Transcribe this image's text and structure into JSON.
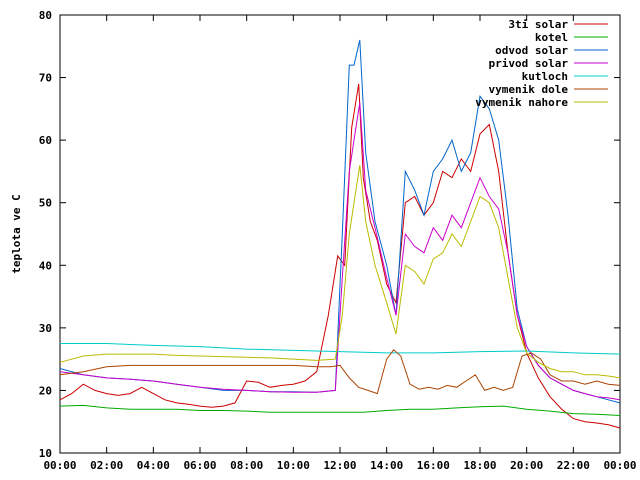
{
  "chart_data": {
    "type": "line",
    "title": "",
    "xlabel": "",
    "ylabel": "teplota ve C",
    "xlim": [
      0,
      24
    ],
    "ylim": [
      10,
      80
    ],
    "grid": false,
    "legend_position": "top-right",
    "x_ticks": [
      {
        "value": 0,
        "label": "00:00"
      },
      {
        "value": 2,
        "label": "02:00"
      },
      {
        "value": 4,
        "label": "04:00"
      },
      {
        "value": 6,
        "label": "06:00"
      },
      {
        "value": 8,
        "label": "08:00"
      },
      {
        "value": 10,
        "label": "10:00"
      },
      {
        "value": 12,
        "label": "12:00"
      },
      {
        "value": 14,
        "label": "14:00"
      },
      {
        "value": 16,
        "label": "16:00"
      },
      {
        "value": 18,
        "label": "18:00"
      },
      {
        "value": 20,
        "label": "20:00"
      },
      {
        "value": 22,
        "label": "22:00"
      },
      {
        "value": 24,
        "label": "00:00"
      }
    ],
    "y_ticks": [
      10,
      20,
      30,
      40,
      50,
      60,
      70,
      80
    ],
    "series": [
      {
        "name": "3ti solar",
        "color": "#cc0000",
        "x": [
          0,
          0.5,
          1,
          1.5,
          2,
          2.5,
          3,
          3.5,
          4,
          4.5,
          5,
          5.5,
          6,
          6.5,
          7,
          7.5,
          8,
          8.5,
          9,
          9.5,
          10,
          10.5,
          11,
          11.5,
          11.9,
          12.2,
          12.5,
          12.8,
          13.0,
          13.3,
          13.6,
          14.0,
          14.4,
          14.8,
          15.2,
          15.6,
          16,
          16.4,
          16.8,
          17.2,
          17.6,
          18,
          18.4,
          18.8,
          19.2,
          19.6,
          20,
          20.5,
          21,
          21.5,
          22,
          22.5,
          23,
          23.5,
          24
        ],
        "y": [
          18.5,
          19.5,
          21,
          20,
          19.5,
          19.2,
          19.5,
          20.5,
          19.5,
          18.5,
          18,
          17.8,
          17.5,
          17.3,
          17.5,
          18,
          21.5,
          21.3,
          20.5,
          20.8,
          21,
          21.5,
          23,
          32,
          41.5,
          40,
          62,
          69,
          54,
          47,
          44,
          37,
          34,
          50,
          51,
          48,
          50,
          55,
          54,
          57,
          55,
          61,
          62.5,
          55,
          42,
          32,
          26,
          22,
          19,
          17,
          15.5,
          15,
          14.8,
          14.5,
          14
        ]
      },
      {
        "name": "kotel",
        "color": "#00aa00",
        "x": [
          0,
          1,
          2,
          3,
          4,
          5,
          6,
          7,
          8,
          9,
          10,
          11,
          12,
          13,
          14,
          15,
          16,
          17,
          18,
          19,
          20,
          21,
          22,
          23,
          24
        ],
        "y": [
          17.5,
          17.6,
          17.2,
          17,
          17,
          17,
          16.8,
          16.8,
          16.7,
          16.5,
          16.5,
          16.5,
          16.5,
          16.5,
          16.8,
          17,
          17,
          17.2,
          17.4,
          17.5,
          17,
          16.7,
          16.3,
          16.2,
          16
        ]
      },
      {
        "name": "odvod solar",
        "color": "#0066cc",
        "x": [
          0,
          1,
          2,
          3,
          4,
          5,
          6,
          7,
          8,
          9,
          10,
          11,
          11.8,
          12.1,
          12.4,
          12.6,
          12.85,
          13.1,
          13.5,
          14.0,
          14.4,
          14.8,
          15.2,
          15.6,
          16,
          16.4,
          16.8,
          17.2,
          17.6,
          18,
          18.4,
          18.8,
          19.2,
          19.6,
          20,
          20.5,
          21,
          21.5,
          22,
          22.5,
          23,
          23.5,
          24
        ],
        "y": [
          23.5,
          22.5,
          22,
          21.8,
          21.5,
          21,
          20.5,
          20,
          20,
          19.8,
          19.8,
          19.7,
          20,
          45,
          72,
          72,
          76,
          58,
          47,
          40,
          32,
          55,
          52,
          48,
          55,
          57,
          60,
          55,
          58,
          67,
          65,
          60,
          48,
          33,
          27,
          24,
          22,
          21,
          20,
          19.5,
          19,
          18.5,
          18
        ]
      },
      {
        "name": "privod solar",
        "color": "#cc00cc",
        "x": [
          0,
          1,
          2,
          3,
          4,
          5,
          6,
          7,
          8,
          9,
          10,
          11,
          11.8,
          12.1,
          12.4,
          12.6,
          12.85,
          13.1,
          13.5,
          14.0,
          14.4,
          14.8,
          15.2,
          15.6,
          16,
          16.4,
          16.8,
          17.2,
          17.6,
          18,
          18.4,
          18.8,
          19.2,
          19.6,
          20,
          20.5,
          21,
          21.5,
          22,
          22.5,
          23,
          23.5,
          24
        ],
        "y": [
          23,
          22.5,
          22,
          21.8,
          21.5,
          21,
          20.5,
          20.2,
          20,
          19.8,
          19.7,
          19.7,
          20,
          38,
          55,
          60,
          66,
          52,
          46,
          38,
          32,
          45,
          43,
          42,
          46,
          44,
          48,
          46,
          50,
          54,
          51,
          49,
          42,
          32,
          27,
          24,
          22,
          21,
          20,
          19.5,
          19,
          18.8,
          18.5
        ]
      },
      {
        "name": "kutloch",
        "color": "#00cccc",
        "x": [
          0,
          2,
          4,
          6,
          8,
          10,
          12,
          14,
          16,
          18,
          20,
          22,
          24
        ],
        "y": [
          27.5,
          27.5,
          27.2,
          27,
          26.6,
          26.4,
          26.2,
          26,
          26,
          26.2,
          26.3,
          26,
          25.8
        ]
      },
      {
        "name": "vymenik dole",
        "color": "#aa4400",
        "x": [
          0,
          1,
          2,
          3,
          4,
          5,
          6,
          7,
          8,
          9,
          10,
          11,
          11.6,
          12.0,
          12.4,
          12.8,
          13.2,
          13.6,
          14.0,
          14.3,
          14.6,
          15.0,
          15.4,
          15.8,
          16.2,
          16.6,
          17.0,
          17.4,
          17.8,
          18.2,
          18.6,
          19.0,
          19.4,
          19.8,
          20.2,
          20.6,
          21.0,
          21.5,
          22,
          22.5,
          23,
          23.5,
          24
        ],
        "y": [
          22.5,
          23,
          23.8,
          24,
          24,
          24,
          24,
          24,
          24,
          24,
          24,
          23.8,
          23.8,
          24,
          22,
          20.5,
          20,
          19.5,
          25,
          26.5,
          25.5,
          21,
          20.2,
          20.5,
          20.2,
          20.8,
          20.5,
          21.5,
          22.5,
          20,
          20.5,
          20,
          20.5,
          25.5,
          26,
          25,
          22.5,
          21.5,
          21.5,
          21,
          21.5,
          21,
          20.8
        ]
      },
      {
        "name": "vymenik nahore",
        "color": "#bbbb00",
        "x": [
          0,
          1,
          2,
          3,
          4,
          5,
          6,
          7,
          8,
          9,
          10,
          11,
          11.8,
          12.1,
          12.4,
          12.6,
          12.85,
          13.1,
          13.5,
          14.0,
          14.4,
          14.8,
          15.2,
          15.6,
          16,
          16.4,
          16.8,
          17.2,
          17.6,
          18,
          18.4,
          18.8,
          19.2,
          19.6,
          20,
          20.5,
          21,
          21.5,
          22,
          22.5,
          23,
          23.5,
          24
        ],
        "y": [
          24.5,
          25.5,
          25.8,
          25.8,
          25.8,
          25.6,
          25.5,
          25.4,
          25.3,
          25.2,
          25,
          24.8,
          25,
          32,
          45,
          50,
          56,
          47,
          40,
          34,
          29,
          40,
          39,
          37,
          41,
          42,
          45,
          43,
          47,
          51,
          50,
          46,
          38,
          30,
          26,
          24.5,
          23.5,
          23,
          23,
          22.5,
          22.5,
          22.3,
          22
        ]
      }
    ]
  }
}
